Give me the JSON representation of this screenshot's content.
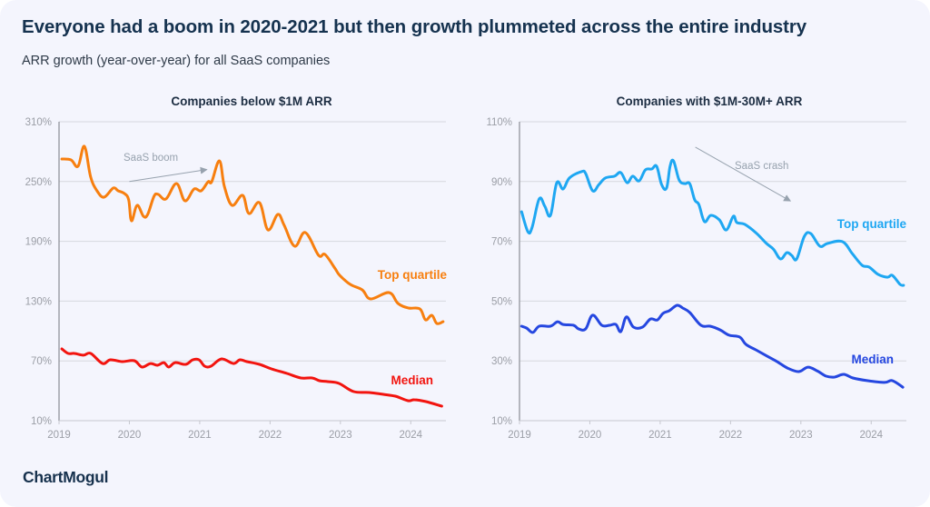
{
  "header": {
    "title": "Everyone had a boom in 2020-2021 but then growth plummeted across the entire industry",
    "subtitle": "ARR growth (year-over-year) for all SaaS companies"
  },
  "footer": {
    "logo": "ChartMogul"
  },
  "colors": {
    "left_top_quartile": "#f77f0f",
    "left_median": "#f2140f",
    "right_top_quartile": "#1ea7f2",
    "right_median": "#2547e0",
    "grid": "#d6d8de",
    "axis": "#8a8d94",
    "annotation": "#97a2ae"
  },
  "chart_data": [
    {
      "type": "line",
      "title": "Companies below $1M ARR",
      "xlabel": "",
      "ylabel": "",
      "xlim": [
        2019,
        2024.5
      ],
      "ylim": [
        10,
        310
      ],
      "x_ticks": [
        "2019",
        "2020",
        "2021",
        "2022",
        "2023",
        "2024"
      ],
      "y_ticks": [
        "310%",
        "250%",
        "190%",
        "130%",
        "70%",
        "10%"
      ],
      "y_tick_values": [
        310,
        250,
        190,
        130,
        70,
        10
      ],
      "grid": true,
      "annotation": {
        "text": "SaaS boom",
        "arrow_from": [
          2020.0,
          250
        ],
        "arrow_to": [
          2021.1,
          262
        ]
      },
      "series": [
        {
          "name": "Top quartile",
          "label": "Top quartile",
          "points": [
            [
              2019.04,
              272.6
            ],
            [
              2019.17,
              271.7
            ],
            [
              2019.27,
              265.3
            ],
            [
              2019.36,
              285.4
            ],
            [
              2019.45,
              254.4
            ],
            [
              2019.54,
              240.7
            ],
            [
              2019.64,
              234.3
            ],
            [
              2019.77,
              243.4
            ],
            [
              2019.84,
              240.7
            ],
            [
              2019.93,
              238.0
            ],
            [
              2019.99,
              231.6
            ],
            [
              2020.03,
              210.6
            ],
            [
              2020.11,
              226.1
            ],
            [
              2020.2,
              215.2
            ],
            [
              2020.26,
              217.0
            ],
            [
              2020.35,
              235.2
            ],
            [
              2020.41,
              237.1
            ],
            [
              2020.52,
              232.5
            ],
            [
              2020.67,
              248.0
            ],
            [
              2020.79,
              230.7
            ],
            [
              2020.92,
              242.5
            ],
            [
              2021.02,
              240.7
            ],
            [
              2021.12,
              249.8
            ],
            [
              2021.17,
              249.8
            ],
            [
              2021.28,
              270.8
            ],
            [
              2021.35,
              245.3
            ],
            [
              2021.46,
              226.1
            ],
            [
              2021.61,
              236.1
            ],
            [
              2021.7,
              217.9
            ],
            [
              2021.85,
              228.8
            ],
            [
              2021.97,
              201.5
            ],
            [
              2022.11,
              217.0
            ],
            [
              2022.2,
              206.1
            ],
            [
              2022.35,
              185.1
            ],
            [
              2022.5,
              198.8
            ],
            [
              2022.69,
              176.0
            ],
            [
              2022.78,
              176.9
            ],
            [
              2022.92,
              163.2
            ],
            [
              2022.99,
              155.9
            ],
            [
              2023.14,
              146.8
            ],
            [
              2023.31,
              141.3
            ],
            [
              2023.43,
              132.2
            ],
            [
              2023.69,
              138.6
            ],
            [
              2023.82,
              127.6
            ],
            [
              2023.97,
              123.1
            ],
            [
              2024.13,
              122.2
            ],
            [
              2024.21,
              111.2
            ],
            [
              2024.3,
              115.8
            ],
            [
              2024.37,
              107.6
            ],
            [
              2024.46,
              109.4
            ]
          ]
        },
        {
          "name": "Median",
          "label": "Median",
          "points": [
            [
              2019.04,
              82.0
            ],
            [
              2019.13,
              77.5
            ],
            [
              2019.22,
              77.5
            ],
            [
              2019.35,
              75.7
            ],
            [
              2019.45,
              77.5
            ],
            [
              2019.62,
              67.4
            ],
            [
              2019.73,
              71.1
            ],
            [
              2019.9,
              69.3
            ],
            [
              2020.07,
              70.2
            ],
            [
              2020.18,
              63.8
            ],
            [
              2020.3,
              67.4
            ],
            [
              2020.4,
              65.6
            ],
            [
              2020.49,
              68.3
            ],
            [
              2020.56,
              63.8
            ],
            [
              2020.65,
              68.3
            ],
            [
              2020.8,
              66.5
            ],
            [
              2020.9,
              71.1
            ],
            [
              2020.99,
              71.1
            ],
            [
              2021.07,
              64.7
            ],
            [
              2021.16,
              64.7
            ],
            [
              2021.31,
              72.0
            ],
            [
              2021.48,
              67.4
            ],
            [
              2021.57,
              71.1
            ],
            [
              2021.67,
              69.3
            ],
            [
              2021.85,
              66.5
            ],
            [
              2022.02,
              62.0
            ],
            [
              2022.24,
              57.4
            ],
            [
              2022.44,
              52.9
            ],
            [
              2022.6,
              52.9
            ],
            [
              2022.7,
              50.1
            ],
            [
              2022.82,
              49.2
            ],
            [
              2022.98,
              47.4
            ],
            [
              2023.19,
              39.2
            ],
            [
              2023.41,
              38.3
            ],
            [
              2023.6,
              36.5
            ],
            [
              2023.78,
              34.6
            ],
            [
              2023.96,
              30.1
            ],
            [
              2024.05,
              31.0
            ],
            [
              2024.21,
              29.2
            ],
            [
              2024.44,
              24.6
            ]
          ]
        }
      ]
    },
    {
      "type": "line",
      "title": "Companies with $1M-30M+ ARR",
      "xlabel": "",
      "ylabel": "",
      "xlim": [
        2019,
        2024.5
      ],
      "ylim": [
        10,
        110
      ],
      "x_ticks": [
        "2019",
        "2020",
        "2021",
        "2022",
        "2023",
        "2024"
      ],
      "y_ticks": [
        "110%",
        "90%",
        "70%",
        "50%",
        "30%",
        "10%"
      ],
      "y_tick_values": [
        110,
        90,
        70,
        50,
        30,
        10
      ],
      "grid": true,
      "annotation": {
        "text": "SaaS crash",
        "arrow_from": [
          2021.5,
          101.5
        ],
        "arrow_to": [
          2022.85,
          83.5
        ]
      },
      "series": [
        {
          "name": "Top quartile",
          "label": "Top quartile",
          "points": [
            [
              2019.03,
              79.9
            ],
            [
              2019.12,
              73.2
            ],
            [
              2019.18,
              74.7
            ],
            [
              2019.28,
              84.2
            ],
            [
              2019.36,
              81.7
            ],
            [
              2019.44,
              78.7
            ],
            [
              2019.53,
              89.6
            ],
            [
              2019.62,
              87.5
            ],
            [
              2019.71,
              91.2
            ],
            [
              2019.88,
              93.3
            ],
            [
              2019.94,
              92.7
            ],
            [
              2020.04,
              86.9
            ],
            [
              2020.13,
              89.0
            ],
            [
              2020.22,
              91.2
            ],
            [
              2020.35,
              91.8
            ],
            [
              2020.44,
              93.0
            ],
            [
              2020.53,
              89.6
            ],
            [
              2020.61,
              91.8
            ],
            [
              2020.7,
              90.2
            ],
            [
              2020.79,
              93.9
            ],
            [
              2020.88,
              94.2
            ],
            [
              2020.95,
              95.1
            ],
            [
              2021.02,
              89.0
            ],
            [
              2021.09,
              87.8
            ],
            [
              2021.14,
              95.1
            ],
            [
              2021.19,
              96.9
            ],
            [
              2021.27,
              90.5
            ],
            [
              2021.35,
              89.3
            ],
            [
              2021.42,
              89.3
            ],
            [
              2021.49,
              83.9
            ],
            [
              2021.55,
              82.3
            ],
            [
              2021.63,
              76.6
            ],
            [
              2021.72,
              78.7
            ],
            [
              2021.84,
              77.2
            ],
            [
              2021.94,
              73.8
            ],
            [
              2022.04,
              78.4
            ],
            [
              2022.09,
              76.3
            ],
            [
              2022.2,
              75.7
            ],
            [
              2022.36,
              72.9
            ],
            [
              2022.51,
              69.3
            ],
            [
              2022.61,
              67.4
            ],
            [
              2022.71,
              64.1
            ],
            [
              2022.8,
              66.2
            ],
            [
              2022.87,
              65.3
            ],
            [
              2022.94,
              64.1
            ],
            [
              2023.05,
              71.7
            ],
            [
              2023.14,
              72.6
            ],
            [
              2023.27,
              68.4
            ],
            [
              2023.38,
              69.3
            ],
            [
              2023.59,
              69.9
            ],
            [
              2023.73,
              65.9
            ],
            [
              2023.87,
              62.0
            ],
            [
              2023.97,
              61.4
            ],
            [
              2024.1,
              58.9
            ],
            [
              2024.23,
              58.0
            ],
            [
              2024.3,
              58.6
            ],
            [
              2024.41,
              55.6
            ],
            [
              2024.46,
              55.3
            ]
          ]
        },
        {
          "name": "Median",
          "label": "Median",
          "points": [
            [
              2019.03,
              41.6
            ],
            [
              2019.1,
              41.0
            ],
            [
              2019.19,
              39.5
            ],
            [
              2019.28,
              41.6
            ],
            [
              2019.44,
              41.6
            ],
            [
              2019.54,
              43.1
            ],
            [
              2019.62,
              42.2
            ],
            [
              2019.77,
              41.9
            ],
            [
              2019.84,
              40.7
            ],
            [
              2019.94,
              40.7
            ],
            [
              2020.04,
              45.3
            ],
            [
              2020.17,
              41.9
            ],
            [
              2020.28,
              41.9
            ],
            [
              2020.37,
              42.2
            ],
            [
              2020.44,
              39.8
            ],
            [
              2020.52,
              44.7
            ],
            [
              2020.62,
              41.3
            ],
            [
              2020.75,
              41.3
            ],
            [
              2020.86,
              44.0
            ],
            [
              2020.96,
              43.7
            ],
            [
              2021.04,
              45.9
            ],
            [
              2021.13,
              46.8
            ],
            [
              2021.24,
              48.6
            ],
            [
              2021.32,
              47.7
            ],
            [
              2021.42,
              46.2
            ],
            [
              2021.58,
              41.9
            ],
            [
              2021.71,
              41.6
            ],
            [
              2021.85,
              40.4
            ],
            [
              2021.98,
              38.6
            ],
            [
              2022.13,
              38.0
            ],
            [
              2022.22,
              35.5
            ],
            [
              2022.36,
              33.7
            ],
            [
              2022.52,
              31.6
            ],
            [
              2022.66,
              29.8
            ],
            [
              2022.81,
              27.6
            ],
            [
              2022.97,
              26.4
            ],
            [
              2023.1,
              27.9
            ],
            [
              2023.23,
              26.7
            ],
            [
              2023.36,
              24.9
            ],
            [
              2023.48,
              24.6
            ],
            [
              2023.61,
              25.5
            ],
            [
              2023.74,
              24.3
            ],
            [
              2023.94,
              23.4
            ],
            [
              2024.19,
              22.8
            ],
            [
              2024.3,
              23.4
            ],
            [
              2024.45,
              21.2
            ]
          ]
        }
      ]
    }
  ]
}
